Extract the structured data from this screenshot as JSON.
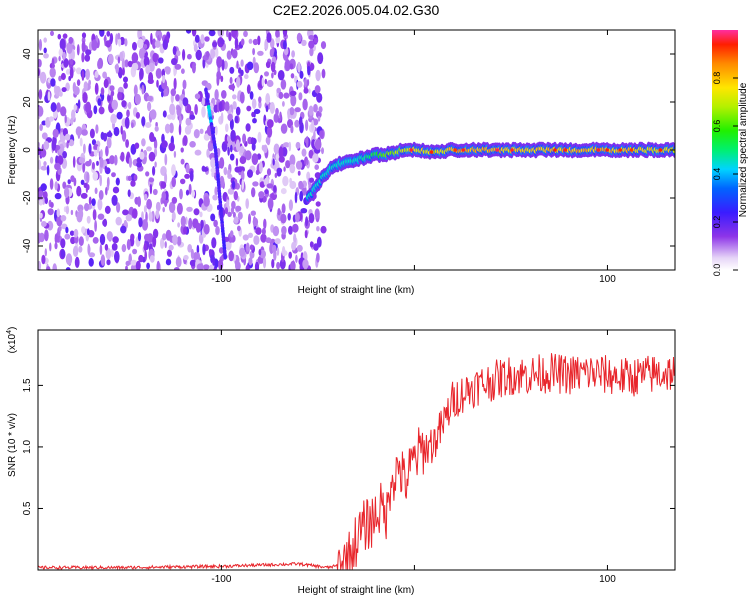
{
  "title": "C2E2.2026.005.04.02.G30",
  "chart_data": [
    {
      "type": "heatmap",
      "name": "spectrogram",
      "xlabel": "Height of straight line (km)",
      "ylabel": "Frequency (Hz)",
      "xlim": [
        -195,
        135
      ],
      "ylim": [
        -50,
        50
      ],
      "x_ticks": [
        -100,
        0,
        100
      ],
      "x_tick_labels": [
        "-100",
        "",
        "100"
      ],
      "y_ticks": [
        -40,
        -20,
        0,
        20,
        40
      ],
      "y_tick_labels": [
        "-40",
        "-20",
        "0",
        "20",
        "40"
      ],
      "colorbar": {
        "label": "Normalized spectral amplitude",
        "range": [
          0,
          1
        ],
        "ticks": [
          0.0,
          0.2,
          0.4,
          0.6,
          0.8
        ],
        "tick_labels": [
          "0.0",
          "0.2",
          "0.4",
          "0.6",
          "0.8"
        ]
      },
      "noise_region_x": [
        -195,
        -50
      ],
      "carrier_track": {
        "x": [
          -55,
          -50,
          -45,
          -40,
          -35,
          -30,
          -25,
          -20,
          -15,
          -10,
          -5,
          0,
          10,
          20,
          40,
          60,
          80,
          100,
          120,
          135
        ],
        "freq": [
          -20,
          -14,
          -9,
          -6,
          -5,
          -4,
          -3,
          -2,
          -2,
          -1,
          0,
          0,
          -1,
          0,
          0,
          0,
          0,
          0,
          0,
          0
        ],
        "amplitude": [
          0.3,
          0.35,
          0.45,
          0.5,
          0.5,
          0.55,
          0.6,
          0.65,
          0.7,
          0.75,
          0.8,
          0.85,
          0.8,
          0.9,
          0.9,
          0.85,
          0.9,
          0.9,
          0.85,
          0.85
        ]
      },
      "diagonal_feature": {
        "x": [
          -108,
          -103,
          -98
        ],
        "freq": [
          25,
          0,
          -45
        ]
      }
    },
    {
      "type": "line",
      "name": "snr",
      "xlabel": "Height of straight line (km)",
      "ylabel": "SNR (10 * v/v)",
      "scale_note": "(x10",
      "scale_exponent": "4",
      "xlim": [
        -195,
        135
      ],
      "ylim": [
        0,
        1.95
      ],
      "x_ticks": [
        -100,
        0,
        100
      ],
      "x_tick_labels": [
        "-100",
        "",
        "100"
      ],
      "y_ticks": [
        0.5,
        1.0,
        1.5
      ],
      "y_tick_labels": [
        "0.5",
        "1.0",
        "1.5"
      ],
      "color": "#e8252b",
      "series": [
        {
          "name": "SNR",
          "x": [
            -195,
            -150,
            -100,
            -60,
            -45,
            -38,
            -34,
            -30,
            -26,
            -22,
            -18,
            -14,
            -12,
            -10,
            -8,
            -5,
            0,
            5,
            10,
            15,
            20,
            25,
            30,
            40,
            50,
            60,
            70,
            80,
            90,
            100,
            110,
            120,
            130,
            135
          ],
          "y": [
            0.02,
            0.02,
            0.03,
            0.05,
            0.02,
            0.04,
            0.1,
            0.25,
            0.35,
            0.4,
            0.5,
            0.45,
            0.8,
            0.75,
            0.85,
            0.7,
            0.9,
            1.0,
            1.05,
            1.2,
            1.4,
            1.45,
            1.5,
            1.55,
            1.6,
            1.6,
            1.62,
            1.6,
            1.62,
            1.6,
            1.58,
            1.6,
            1.62,
            1.62
          ]
        }
      ]
    }
  ]
}
